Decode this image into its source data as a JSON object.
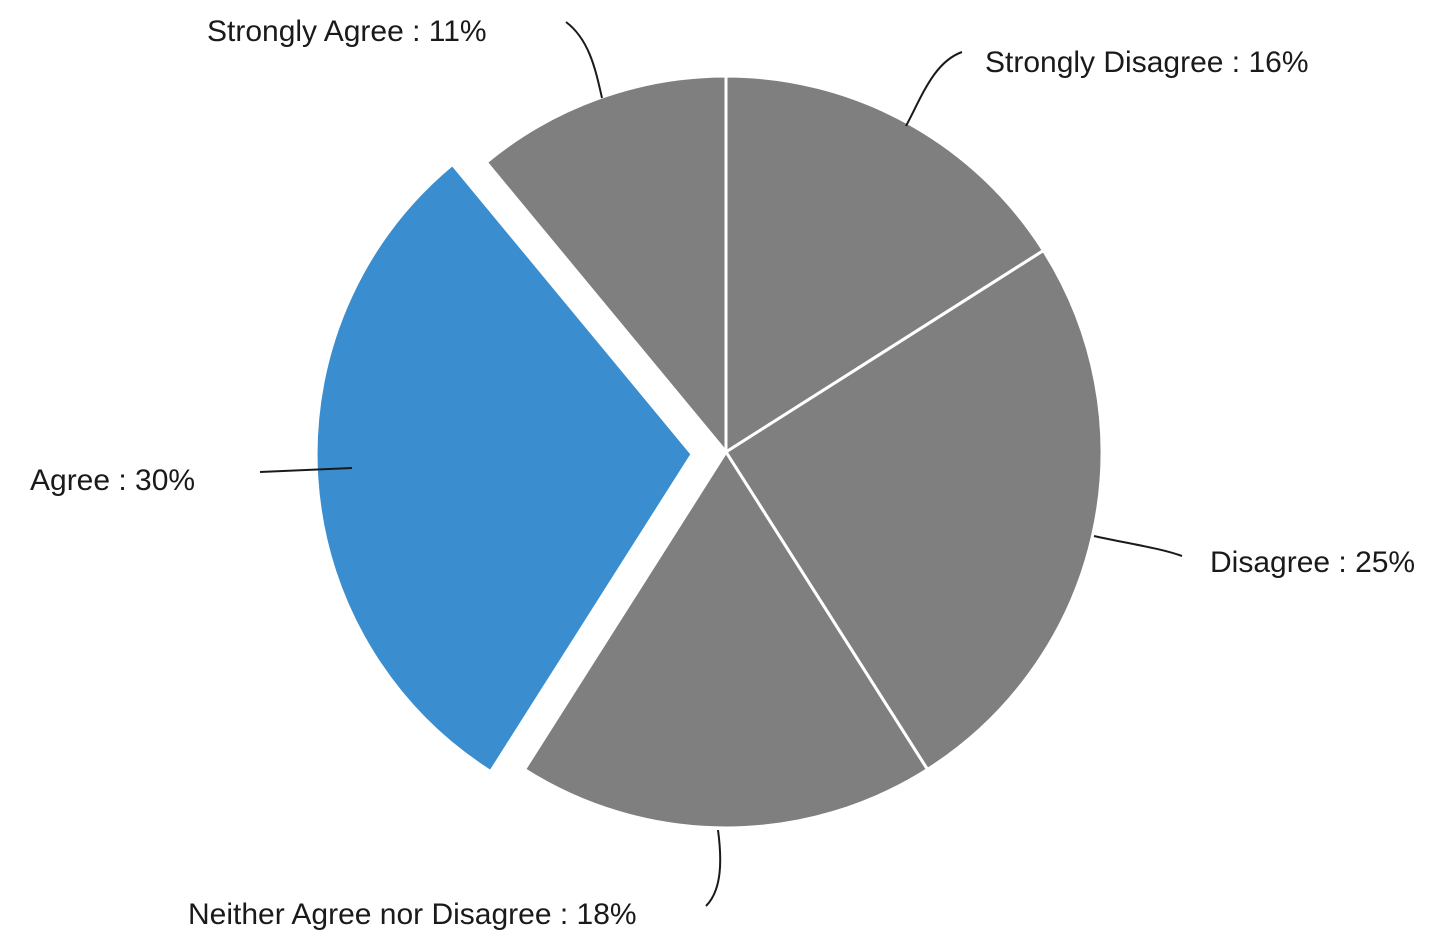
{
  "chart_data": {
    "type": "pie",
    "label_separator": " : ",
    "slices": [
      {
        "label": "Strongly Disagree",
        "value": 16,
        "value_text": "16%",
        "color": "#7f7f7f",
        "exploded": false
      },
      {
        "label": "Disagree",
        "value": 25,
        "value_text": "25%",
        "color": "#7f7f7f",
        "exploded": false
      },
      {
        "label": "Neither Agree nor Disagree",
        "value": 18,
        "value_text": "18%",
        "color": "#7f7f7f",
        "exploded": false
      },
      {
        "label": "Agree",
        "value": 30,
        "value_text": "30%",
        "color": "#3a8ecf",
        "exploded": true
      },
      {
        "label": "Strongly Agree",
        "value": 11,
        "value_text": "11%",
        "color": "#7f7f7f",
        "exploded": false
      }
    ],
    "start_angle": "12 o'clock",
    "direction": "clockwise",
    "legend": "none"
  }
}
